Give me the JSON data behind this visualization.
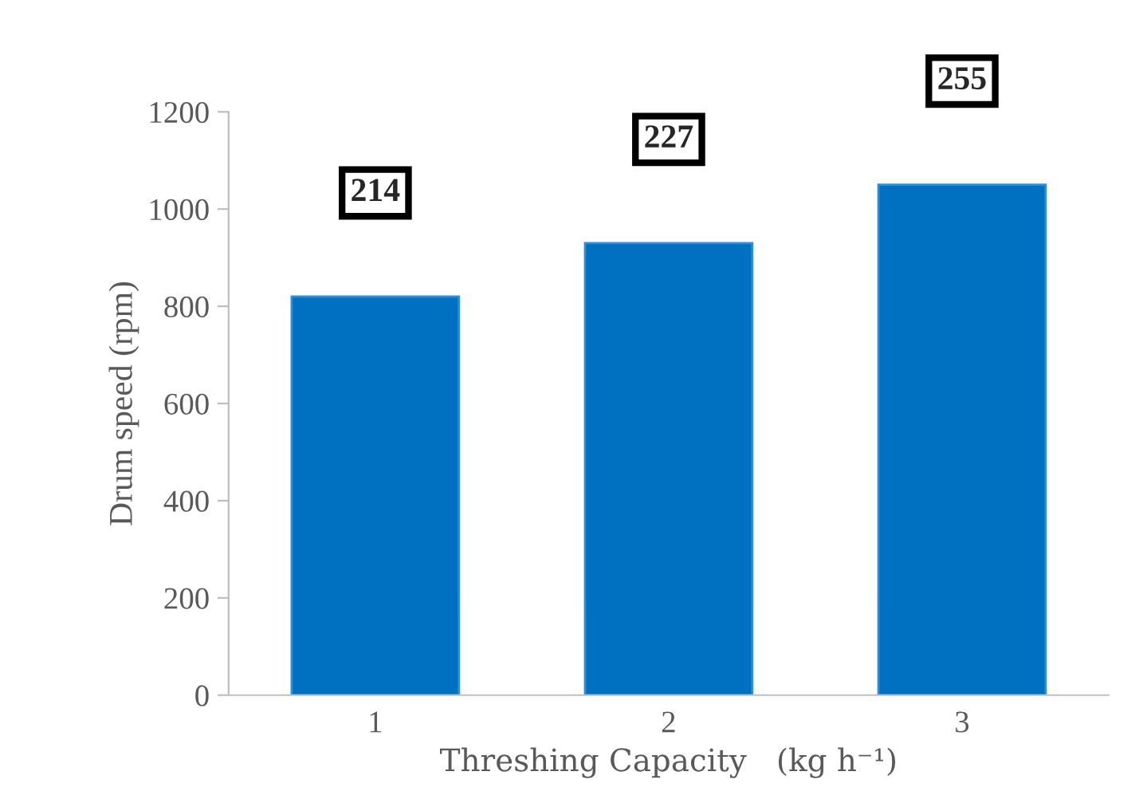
{
  "chart_data": {
    "type": "bar",
    "xlabel": "Threshing Capacity   (kg h⁻¹)",
    "ylabel": "Drum speed (rpm)",
    "categories": [
      "1",
      "2",
      "3"
    ],
    "values": [
      820,
      930,
      1050
    ],
    "annotations": [
      {
        "text": "214",
        "x": "1",
        "y": 820
      },
      {
        "text": "227",
        "x": "2",
        "y": 930
      },
      {
        "text": "255",
        "x": "3",
        "y": 1050
      }
    ],
    "color": "#0070c0",
    "ylim": [
      0,
      1200
    ],
    "yticks": [
      0,
      200,
      400,
      600,
      800,
      1000,
      1200
    ],
    "grid": false
  }
}
